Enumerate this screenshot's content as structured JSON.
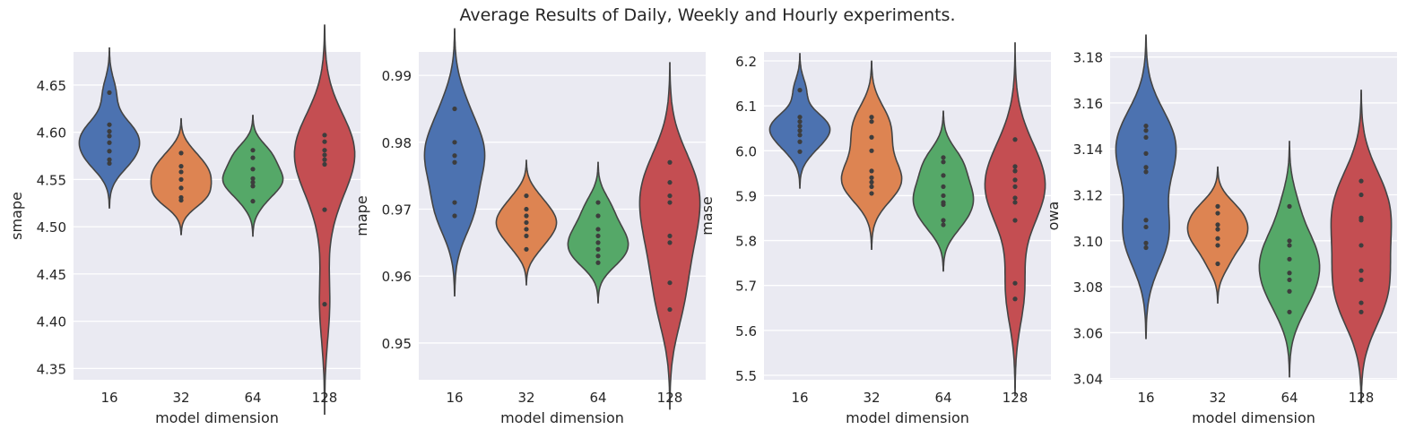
{
  "figure": {
    "title": "Average Results of Daily, Weekly and Hourly experiments."
  },
  "colors": {
    "16": "#4c72b0",
    "32": "#dd8452",
    "64": "#55a868",
    "128": "#c44e52",
    "panel_bg": "#eaeaf2",
    "grid": "#ffffff",
    "points": "#3d3d3d",
    "outline": "#444444"
  },
  "chart_data": [
    {
      "type": "violin",
      "xlabel": "model dimension",
      "ylabel": "smape",
      "categories": [
        "16",
        "32",
        "64",
        "128"
      ],
      "ylim": [
        4.338,
        4.685
      ],
      "yticks": [
        4.35,
        4.4,
        4.45,
        4.5,
        4.55,
        4.6,
        4.65
      ],
      "ytick_labels": [
        "4.35",
        "4.40",
        "4.45",
        "4.50",
        "4.55",
        "4.60",
        "4.65"
      ],
      "grid": true,
      "series": [
        {
          "category": "16",
          "points": [
            4.642,
            4.608,
            4.601,
            4.596,
            4.589,
            4.58,
            4.571,
            4.567
          ]
        },
        {
          "category": "32",
          "points": [
            4.578,
            4.564,
            4.558,
            4.55,
            4.541,
            4.531,
            4.528
          ]
        },
        {
          "category": "64",
          "points": [
            4.581,
            4.573,
            4.561,
            4.551,
            4.547,
            4.543,
            4.527
          ]
        },
        {
          "category": "128",
          "points": [
            4.597,
            4.59,
            4.581,
            4.576,
            4.571,
            4.566,
            4.518,
            4.418
          ]
        }
      ]
    },
    {
      "type": "violin",
      "xlabel": "model dimension",
      "ylabel": "mape",
      "categories": [
        "16",
        "32",
        "64",
        "128"
      ],
      "ylim": [
        0.9445,
        0.9935
      ],
      "yticks": [
        0.95,
        0.96,
        0.97,
        0.98,
        0.99
      ],
      "ytick_labels": [
        "0.95",
        "0.96",
        "0.97",
        "0.98",
        "0.99"
      ],
      "grid": true,
      "series": [
        {
          "category": "16",
          "points": [
            0.985,
            0.98,
            0.978,
            0.977,
            0.971,
            0.969
          ]
        },
        {
          "category": "32",
          "points": [
            0.972,
            0.97,
            0.969,
            0.968,
            0.967,
            0.966,
            0.964
          ]
        },
        {
          "category": "64",
          "points": [
            0.971,
            0.969,
            0.967,
            0.966,
            0.965,
            0.964,
            0.963,
            0.962
          ]
        },
        {
          "category": "128",
          "points": [
            0.977,
            0.974,
            0.972,
            0.971,
            0.966,
            0.965,
            0.959,
            0.955
          ]
        }
      ]
    },
    {
      "type": "violin",
      "xlabel": "model dimension",
      "ylabel": "mase",
      "categories": [
        "16",
        "32",
        "64",
        "128"
      ],
      "ylim": [
        5.49,
        6.22
      ],
      "yticks": [
        5.5,
        5.6,
        5.7,
        5.8,
        5.9,
        6.0,
        6.1,
        6.2
      ],
      "ytick_labels": [
        "5.5",
        "5.6",
        "5.7",
        "5.8",
        "5.9",
        "6.0",
        "6.1",
        "6.2"
      ],
      "grid": true,
      "series": [
        {
          "category": "16",
          "points": [
            6.135,
            6.075,
            6.065,
            6.055,
            6.045,
            6.035,
            6.02,
            5.998
          ]
        },
        {
          "category": "32",
          "points": [
            6.075,
            6.065,
            6.03,
            6.0,
            5.955,
            5.94,
            5.93,
            5.92,
            5.905
          ]
        },
        {
          "category": "64",
          "points": [
            5.985,
            5.975,
            5.945,
            5.92,
            5.9,
            5.885,
            5.88,
            5.845,
            5.835
          ]
        },
        {
          "category": "128",
          "points": [
            6.025,
            5.965,
            5.955,
            5.935,
            5.92,
            5.895,
            5.885,
            5.845,
            5.705,
            5.67
          ]
        }
      ]
    },
    {
      "type": "violin",
      "xlabel": "model dimension",
      "ylabel": "owa",
      "categories": [
        "16",
        "32",
        "64",
        "128"
      ],
      "ylim": [
        3.0395,
        3.1822
      ],
      "yticks": [
        3.04,
        3.06,
        3.08,
        3.1,
        3.12,
        3.14,
        3.16,
        3.18
      ],
      "ytick_labels": [
        "3.04",
        "3.06",
        "3.08",
        "3.10",
        "3.12",
        "3.14",
        "3.16",
        "3.18"
      ],
      "grid": true,
      "series": [
        {
          "category": "16",
          "points": [
            3.15,
            3.148,
            3.145,
            3.138,
            3.132,
            3.13,
            3.109,
            3.106,
            3.099,
            3.097
          ]
        },
        {
          "category": "32",
          "points": [
            3.115,
            3.112,
            3.107,
            3.105,
            3.101,
            3.098,
            3.09
          ]
        },
        {
          "category": "64",
          "points": [
            3.115,
            3.1,
            3.098,
            3.092,
            3.086,
            3.083,
            3.078,
            3.069
          ]
        },
        {
          "category": "128",
          "points": [
            3.126,
            3.12,
            3.11,
            3.109,
            3.098,
            3.087,
            3.083,
            3.073,
            3.069
          ]
        }
      ]
    }
  ]
}
